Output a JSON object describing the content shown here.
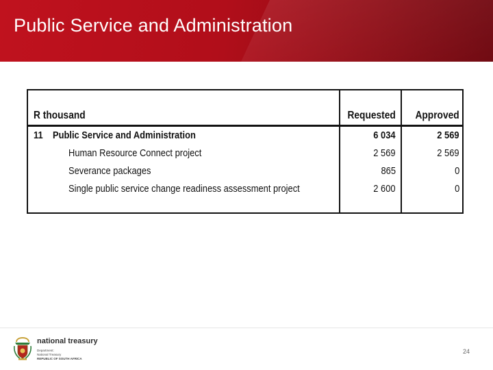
{
  "slide": {
    "title": "Public Service and Administration",
    "page_number": "24"
  },
  "table": {
    "header": {
      "label": "R thousand",
      "requested": "Requested",
      "approved": "Approved"
    },
    "rows": [
      {
        "code": "11",
        "label": "Public Service and Administration",
        "requested": "6 034",
        "approved": "2 569",
        "bold": true
      },
      {
        "code": "",
        "label": "Human Resource Connect project",
        "requested": "2 569",
        "approved": "2 569",
        "bold": false
      },
      {
        "code": "",
        "label": "Severance packages",
        "requested": "865",
        "approved": "0",
        "bold": false
      },
      {
        "code": "",
        "label": "Single public service change readiness assessment project",
        "requested": "2 600",
        "approved": "0",
        "bold": false
      }
    ]
  },
  "footer": {
    "logo_name": "national treasury",
    "logo_lines": [
      "Department:",
      "National Treasury",
      "REPUBLIC OF SOUTH AFRICA"
    ],
    "crest_icon": "coat-of-arms-icon"
  },
  "colors": {
    "title_bar": "#b10e1a",
    "title_text": "#ffffff"
  }
}
